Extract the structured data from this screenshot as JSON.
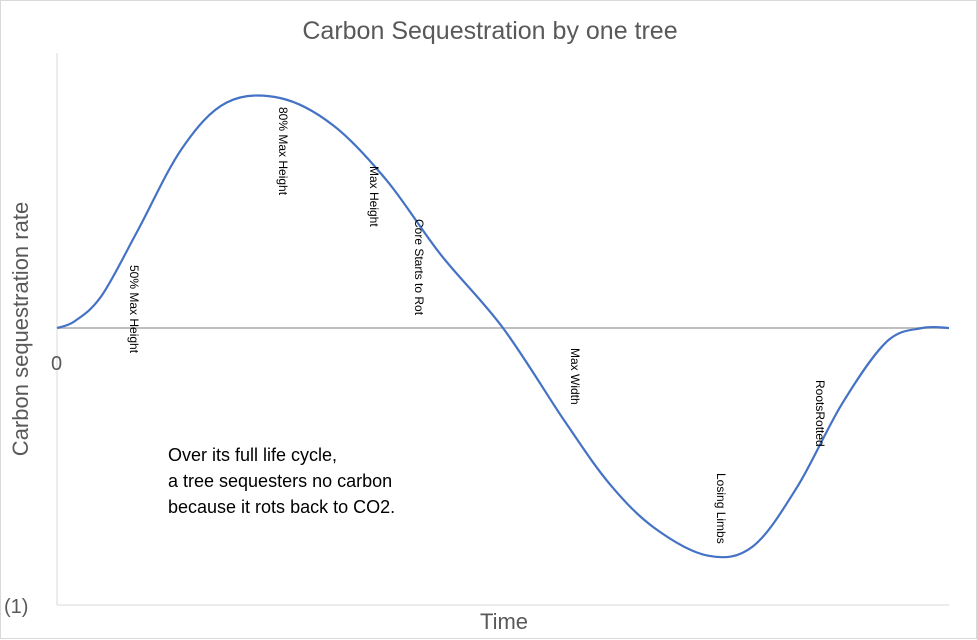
{
  "chart_data": {
    "type": "line",
    "title": "Carbon Sequestration by one tree",
    "xlabel": "Time",
    "ylabel": "Carbon sequestration rate",
    "y_tick_labels": [
      "0",
      "(1)"
    ],
    "ylim": [
      -1.2,
      1.2
    ],
    "xlim": [
      0,
      1
    ],
    "grid": false,
    "legend": "none",
    "series": [
      {
        "color": "#4472C4",
        "points": [
          {
            "x": 0.0,
            "y": 0.0
          },
          {
            "x": 0.02,
            "y": 0.03
          },
          {
            "x": 0.05,
            "y": 0.14
          },
          {
            "x": 0.09,
            "y": 0.42
          },
          {
            "x": 0.14,
            "y": 0.78
          },
          {
            "x": 0.19,
            "y": 0.98
          },
          {
            "x": 0.25,
            "y": 1.0
          },
          {
            "x": 0.31,
            "y": 0.88
          },
          {
            "x": 0.37,
            "y": 0.64
          },
          {
            "x": 0.43,
            "y": 0.32
          },
          {
            "x": 0.5,
            "y": 0.0
          },
          {
            "x": 0.57,
            "y": -0.41
          },
          {
            "x": 0.62,
            "y": -0.68
          },
          {
            "x": 0.67,
            "y": -0.87
          },
          {
            "x": 0.73,
            "y": -0.99
          },
          {
            "x": 0.78,
            "y": -0.95
          },
          {
            "x": 0.83,
            "y": -0.69
          },
          {
            "x": 0.88,
            "y": -0.33
          },
          {
            "x": 0.93,
            "y": -0.06
          },
          {
            "x": 0.97,
            "y": 0.0
          },
          {
            "x": 1.0,
            "y": 0.0
          }
        ]
      }
    ],
    "zero_line_color": "#BFBFBF",
    "annotations": [
      {
        "text": "50% Max Height",
        "x": 0.09
      },
      {
        "text": "80% Max Height",
        "x": 0.249
      },
      {
        "text": "Max Height",
        "x": 0.352
      },
      {
        "text": "Core Starts to Rot",
        "x": 0.405
      },
      {
        "text": "Max Width",
        "x": 0.575
      },
      {
        "text": "Losing Limbs",
        "x": 0.742
      },
      {
        "text": "RootsRotted",
        "x": 0.85
      }
    ],
    "note_lines": [
      "Over its full life cycle,",
      "a tree sequesters no carbon",
      "because it rots back to CO2."
    ]
  }
}
